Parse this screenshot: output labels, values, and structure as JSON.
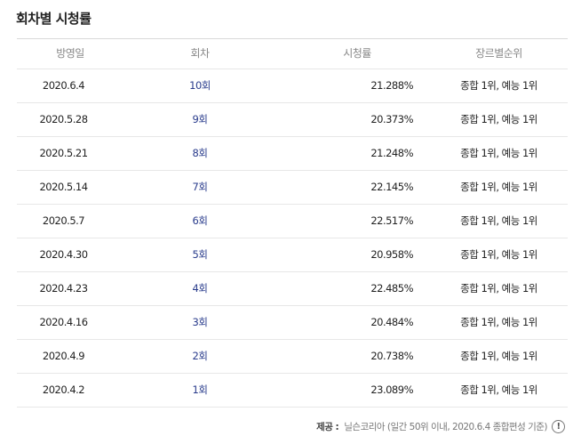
{
  "title": "회차별 시청률",
  "table": {
    "headers": {
      "date": "방영일",
      "episode": "회차",
      "rating": "시청률",
      "genre_rank": "장르별순위"
    },
    "rows": [
      {
        "date": "2020.6.4",
        "episode": "10회",
        "rating": "21.288%",
        "genre_rank": "종합 1위, 예능 1위"
      },
      {
        "date": "2020.5.28",
        "episode": "9회",
        "rating": "20.373%",
        "genre_rank": "종합 1위, 예능 1위"
      },
      {
        "date": "2020.5.21",
        "episode": "8회",
        "rating": "21.248%",
        "genre_rank": "종합 1위, 예능 1위"
      },
      {
        "date": "2020.5.14",
        "episode": "7회",
        "rating": "22.145%",
        "genre_rank": "종합 1위, 예능 1위"
      },
      {
        "date": "2020.5.7",
        "episode": "6회",
        "rating": "22.517%",
        "genre_rank": "종합 1위, 예능 1위"
      },
      {
        "date": "2020.4.30",
        "episode": "5회",
        "rating": "20.958%",
        "genre_rank": "종합 1위, 예능 1위"
      },
      {
        "date": "2020.4.23",
        "episode": "4회",
        "rating": "22.485%",
        "genre_rank": "종합 1위, 예능 1위"
      },
      {
        "date": "2020.4.16",
        "episode": "3회",
        "rating": "20.484%",
        "genre_rank": "종합 1위, 예능 1위"
      },
      {
        "date": "2020.4.9",
        "episode": "2회",
        "rating": "20.738%",
        "genre_rank": "종합 1위, 예능 1위"
      },
      {
        "date": "2020.4.2",
        "episode": "1회",
        "rating": "23.089%",
        "genre_rank": "종합 1위, 예능 1위"
      }
    ]
  },
  "footer": {
    "label": "제공 :",
    "source": "닐슨코리아 (일간 50위 이내, 2020.6.4 종합편성 기준)",
    "info_icon": "info-icon",
    "info_glyph": "!"
  },
  "colors": {
    "episode_link": "#2a3c8c"
  }
}
